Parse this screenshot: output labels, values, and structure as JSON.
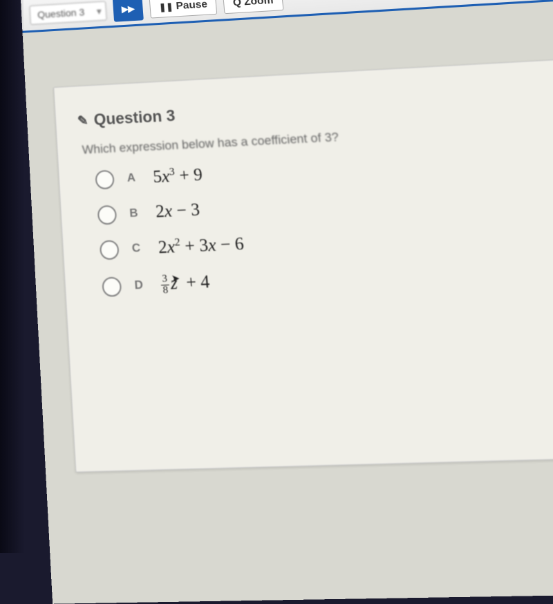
{
  "toolbar": {
    "dropdown_label": "Question 3",
    "next_icon": "▸▸",
    "pause_icon": "❚❚",
    "pause_label": "Pause",
    "zoom_icon": "🔍",
    "zoom_label": "Zoom"
  },
  "question": {
    "icon": "✎",
    "title": "Question 3",
    "prompt": "Which expression below has a coefficient of 3?"
  },
  "options": [
    {
      "letter": "A",
      "expr_html": "5<span class='var'>x</span><sup>3</sup> + 9"
    },
    {
      "letter": "B",
      "expr_html": "2<span class='var'>x</span> − 3"
    },
    {
      "letter": "C",
      "expr_html": "2<span class='var'>x</span><sup>2</sup> + 3<span class='var'>x</span> − 6"
    },
    {
      "letter": "D",
      "expr_html": "<span class='fraction'><span class='num'>3</span><span class='den'>8</span></span><span class='var'>z</span><span class='cursor-glyph'>➤</span> + 4"
    }
  ],
  "colors": {
    "accent": "#1e5fb3",
    "page_bg": "#d8d8d0",
    "card_bg": "#f0efe8",
    "dark_bg": "#1a1a2e",
    "text_muted": "#666",
    "text_dark": "#222"
  }
}
